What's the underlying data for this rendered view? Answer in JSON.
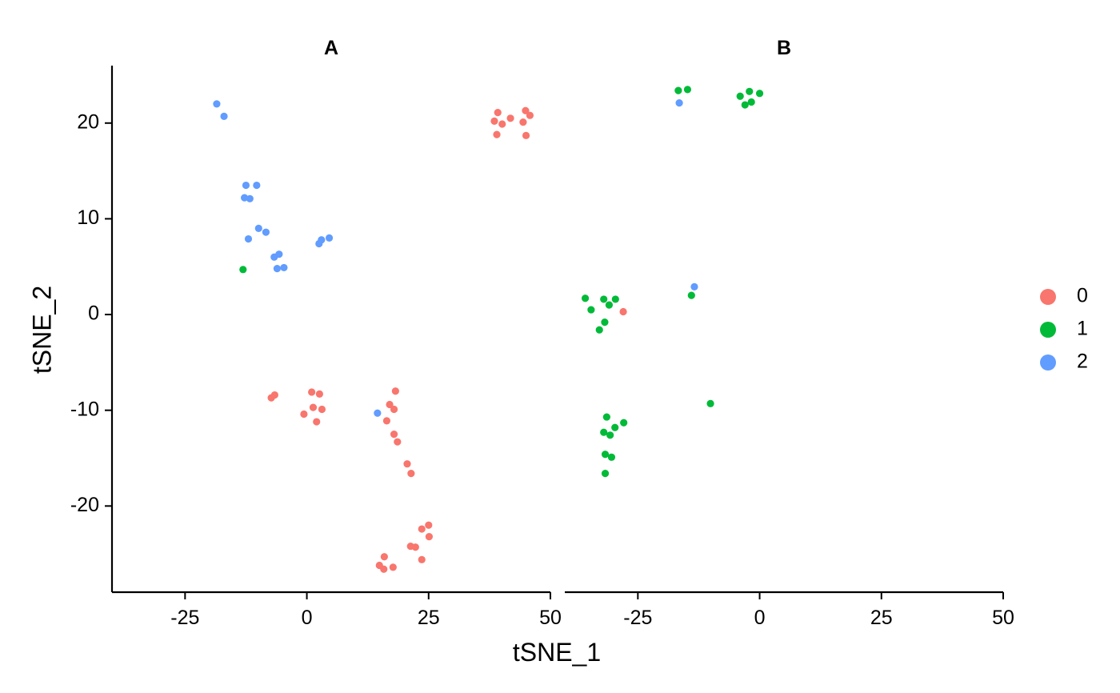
{
  "chart_data": {
    "type": "scatter",
    "title": "",
    "xlabel": "tSNE_1",
    "ylabel": "tSNE_2",
    "xlim": [
      -40,
      50
    ],
    "ylim": [
      -29,
      26
    ],
    "x_ticks": [
      -25,
      0,
      25,
      50
    ],
    "y_ticks": [
      20,
      10,
      0,
      -10,
      -20
    ],
    "x_tick_labels": [
      "-25",
      "0",
      "25",
      "50"
    ],
    "y_tick_labels": [
      "20",
      "10",
      "0",
      "-10",
      "-20"
    ],
    "grid": false,
    "legend_position": "right",
    "legend": [
      {
        "label": "0",
        "color": "#F8766D"
      },
      {
        "label": "1",
        "color": "#00BA38"
      },
      {
        "label": "2",
        "color": "#619CFF"
      }
    ],
    "panels": [
      {
        "title": "A",
        "points": [
          {
            "x": -18.5,
            "y": 22.0,
            "g": "2"
          },
          {
            "x": -17.0,
            "y": 20.7,
            "g": "2"
          },
          {
            "x": -12.5,
            "y": 13.5,
            "g": "2"
          },
          {
            "x": -10.3,
            "y": 13.5,
            "g": "2"
          },
          {
            "x": -12.8,
            "y": 12.2,
            "g": "2"
          },
          {
            "x": -11.7,
            "y": 12.1,
            "g": "2"
          },
          {
            "x": -9.9,
            "y": 9.0,
            "g": "2"
          },
          {
            "x": -8.4,
            "y": 8.6,
            "g": "2"
          },
          {
            "x": -12.0,
            "y": 7.9,
            "g": "2"
          },
          {
            "x": -6.7,
            "y": 6.0,
            "g": "2"
          },
          {
            "x": -5.7,
            "y": 6.3,
            "g": "2"
          },
          {
            "x": -6.1,
            "y": 4.8,
            "g": "2"
          },
          {
            "x": -4.7,
            "y": 4.9,
            "g": "2"
          },
          {
            "x": 3.0,
            "y": 7.8,
            "g": "2"
          },
          {
            "x": 4.6,
            "y": 8.0,
            "g": "2"
          },
          {
            "x": 2.5,
            "y": 7.4,
            "g": "2"
          },
          {
            "x": 14.5,
            "y": -10.3,
            "g": "2"
          },
          {
            "x": -13.1,
            "y": 4.7,
            "g": "1"
          },
          {
            "x": 38.5,
            "y": 20.2,
            "g": "0"
          },
          {
            "x": 39.2,
            "y": 21.1,
            "g": "0"
          },
          {
            "x": 40.1,
            "y": 19.9,
            "g": "0"
          },
          {
            "x": 41.8,
            "y": 20.5,
            "g": "0"
          },
          {
            "x": 39.0,
            "y": 18.8,
            "g": "0"
          },
          {
            "x": 44.9,
            "y": 21.3,
            "g": "0"
          },
          {
            "x": 45.8,
            "y": 20.8,
            "g": "0"
          },
          {
            "x": 44.4,
            "y": 20.1,
            "g": "0"
          },
          {
            "x": 45.0,
            "y": 18.7,
            "g": "0"
          },
          {
            "x": -7.3,
            "y": -8.7,
            "g": "0"
          },
          {
            "x": -6.6,
            "y": -8.4,
            "g": "0"
          },
          {
            "x": 1.0,
            "y": -8.1,
            "g": "0"
          },
          {
            "x": 2.6,
            "y": -8.3,
            "g": "0"
          },
          {
            "x": -0.6,
            "y": -10.4,
            "g": "0"
          },
          {
            "x": 1.3,
            "y": -9.7,
            "g": "0"
          },
          {
            "x": 3.1,
            "y": -9.9,
            "g": "0"
          },
          {
            "x": 2.0,
            "y": -11.2,
            "g": "0"
          },
          {
            "x": 18.2,
            "y": -8.0,
            "g": "0"
          },
          {
            "x": 17.0,
            "y": -9.4,
            "g": "0"
          },
          {
            "x": 17.9,
            "y": -9.9,
            "g": "0"
          },
          {
            "x": 16.4,
            "y": -11.1,
            "g": "0"
          },
          {
            "x": 17.9,
            "y": -12.5,
            "g": "0"
          },
          {
            "x": 18.6,
            "y": -13.3,
            "g": "0"
          },
          {
            "x": 20.6,
            "y": -15.6,
            "g": "0"
          },
          {
            "x": 21.4,
            "y": -16.6,
            "g": "0"
          },
          {
            "x": 25.0,
            "y": -22.0,
            "g": "0"
          },
          {
            "x": 23.6,
            "y": -22.4,
            "g": "0"
          },
          {
            "x": 25.1,
            "y": -23.2,
            "g": "0"
          },
          {
            "x": 21.3,
            "y": -24.2,
            "g": "0"
          },
          {
            "x": 22.3,
            "y": -24.3,
            "g": "0"
          },
          {
            "x": 23.6,
            "y": -25.6,
            "g": "0"
          },
          {
            "x": 15.9,
            "y": -25.3,
            "g": "0"
          },
          {
            "x": 14.9,
            "y": -26.2,
            "g": "0"
          },
          {
            "x": 15.8,
            "y": -26.6,
            "g": "0"
          },
          {
            "x": 17.7,
            "y": -26.4,
            "g": "0"
          }
        ]
      },
      {
        "title": "B",
        "points": [
          {
            "x": -16.7,
            "y": 23.4,
            "g": "1"
          },
          {
            "x": -14.8,
            "y": 23.5,
            "g": "1"
          },
          {
            "x": -16.5,
            "y": 22.1,
            "g": "2"
          },
          {
            "x": -4.0,
            "y": 22.8,
            "g": "1"
          },
          {
            "x": -2.1,
            "y": 23.3,
            "g": "1"
          },
          {
            "x": 0.0,
            "y": 23.1,
            "g": "1"
          },
          {
            "x": -3.0,
            "y": 21.9,
            "g": "1"
          },
          {
            "x": -1.7,
            "y": 22.2,
            "g": "1"
          },
          {
            "x": -35.8,
            "y": 1.7,
            "g": "1"
          },
          {
            "x": -34.6,
            "y": 0.5,
            "g": "1"
          },
          {
            "x": -32.0,
            "y": 1.6,
            "g": "1"
          },
          {
            "x": -30.9,
            "y": 1.0,
            "g": "1"
          },
          {
            "x": -29.6,
            "y": 1.6,
            "g": "1"
          },
          {
            "x": -28.0,
            "y": 0.3,
            "g": "0"
          },
          {
            "x": -31.8,
            "y": -0.8,
            "g": "1"
          },
          {
            "x": -32.9,
            "y": -1.6,
            "g": "1"
          },
          {
            "x": -13.4,
            "y": 2.9,
            "g": "2"
          },
          {
            "x": -14.0,
            "y": 2.0,
            "g": "1"
          },
          {
            "x": -10.1,
            "y": -9.3,
            "g": "1"
          },
          {
            "x": -31.4,
            "y": -10.7,
            "g": "1"
          },
          {
            "x": -27.9,
            "y": -11.3,
            "g": "1"
          },
          {
            "x": -29.7,
            "y": -11.8,
            "g": "1"
          },
          {
            "x": -32.0,
            "y": -12.3,
            "g": "1"
          },
          {
            "x": -30.7,
            "y": -12.6,
            "g": "1"
          },
          {
            "x": -31.7,
            "y": -14.6,
            "g": "1"
          },
          {
            "x": -30.4,
            "y": -14.9,
            "g": "1"
          },
          {
            "x": -31.7,
            "y": -16.6,
            "g": "1"
          }
        ]
      }
    ]
  }
}
